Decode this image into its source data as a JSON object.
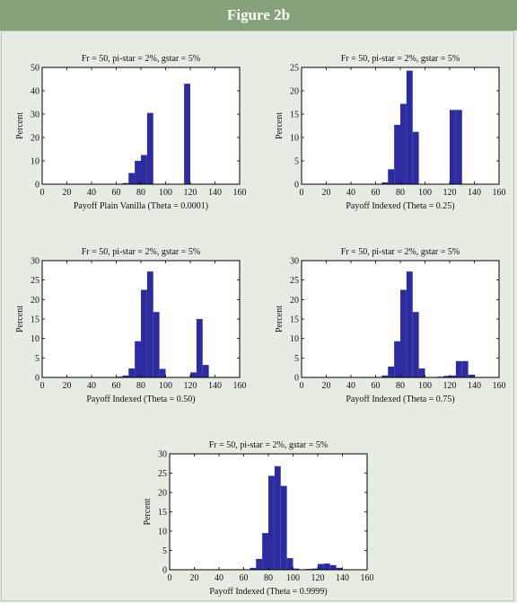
{
  "figure_title": "Figure 2b",
  "colors": {
    "banner": "#85a27a",
    "background": "#e7ece3",
    "bar": "#2c2ca0"
  },
  "chart_data": [
    {
      "type": "bar",
      "title": "Fr = 50, pi-star = 2%, gstar = 5%",
      "xlabel": "Payoff Plain Vanilla (Theta = 0.0001)",
      "ylabel": "Percent",
      "xlim": [
        0,
        160
      ],
      "ylim": [
        0,
        50
      ],
      "xticks": [
        0,
        20,
        40,
        60,
        80,
        100,
        120,
        140,
        160
      ],
      "yticks": [
        0,
        10,
        20,
        30,
        40,
        50
      ],
      "bin_width": 5,
      "bins": [
        [
          60,
          0.1
        ],
        [
          65,
          0.5
        ],
        [
          70,
          4.8
        ],
        [
          75,
          10
        ],
        [
          80,
          12.5
        ],
        [
          85,
          30.5
        ],
        [
          115,
          43
        ]
      ]
    },
    {
      "type": "bar",
      "title": "Fr = 50, pi-star = 2%, gstar = 5%",
      "xlabel": "Payoff Indexed (Theta = 0.25)",
      "ylabel": "Percent",
      "xlim": [
        0,
        160
      ],
      "ylim": [
        0,
        25
      ],
      "xticks": [
        0,
        20,
        40,
        60,
        80,
        100,
        120,
        140,
        160
      ],
      "yticks": [
        0,
        5,
        10,
        15,
        20,
        25
      ],
      "bin_width": 5,
      "bins": [
        [
          65,
          0.4
        ],
        [
          70,
          3.2
        ],
        [
          75,
          12.7
        ],
        [
          80,
          17.2
        ],
        [
          85,
          24.3
        ],
        [
          90,
          11.2
        ],
        [
          120,
          15.9
        ],
        [
          125,
          15.9
        ]
      ]
    },
    {
      "type": "bar",
      "title": "Fr = 50, pi-star = 2%, gstar = 5%",
      "xlabel": "Payoff Indexed (Theta = 0.50)",
      "ylabel": "Percent",
      "xlim": [
        0,
        160
      ],
      "ylim": [
        0,
        30
      ],
      "xticks": [
        0,
        20,
        40,
        60,
        80,
        100,
        120,
        140,
        160
      ],
      "yticks": [
        0,
        5,
        10,
        15,
        20,
        25,
        30
      ],
      "bin_width": 5,
      "bins": [
        [
          60,
          0.2
        ],
        [
          65,
          0.5
        ],
        [
          70,
          2.3
        ],
        [
          75,
          9.3
        ],
        [
          80,
          22.5
        ],
        [
          85,
          27.2
        ],
        [
          90,
          16.8
        ],
        [
          95,
          2.2
        ],
        [
          120,
          1.3
        ],
        [
          125,
          15
        ],
        [
          130,
          3.2
        ]
      ]
    },
    {
      "type": "bar",
      "title": "Fr = 50, pi-star = 2%, gstar = 5%",
      "xlabel": "Payoff Indexed (Theta = 0.75)",
      "ylabel": "Percent",
      "xlim": [
        0,
        160
      ],
      "ylim": [
        0,
        30
      ],
      "xticks": [
        0,
        20,
        40,
        60,
        80,
        100,
        120,
        140,
        160
      ],
      "yticks": [
        0,
        5,
        10,
        15,
        20,
        25,
        30
      ],
      "bin_width": 5,
      "bins": [
        [
          65,
          0.5
        ],
        [
          70,
          2.8
        ],
        [
          75,
          9.3
        ],
        [
          80,
          22.5
        ],
        [
          85,
          27.2
        ],
        [
          90,
          16.8
        ],
        [
          95,
          2.3
        ],
        [
          110,
          0.2
        ],
        [
          115,
          0.4
        ],
        [
          120,
          0.5
        ],
        [
          125,
          4.2
        ],
        [
          130,
          4.2
        ],
        [
          135,
          0.7
        ]
      ]
    },
    {
      "type": "bar",
      "title": "Fr = 50, pi-star = 2%, gstar = 5%",
      "xlabel": "Payoff Indexed (Theta = 0.9999)",
      "ylabel": "Percent",
      "xlim": [
        0,
        160
      ],
      "ylim": [
        0,
        30
      ],
      "xticks": [
        0,
        20,
        40,
        60,
        80,
        100,
        120,
        140,
        160
      ],
      "yticks": [
        0,
        5,
        10,
        15,
        20,
        25,
        30
      ],
      "bin_width": 5,
      "bins": [
        [
          65,
          0.5
        ],
        [
          70,
          2.8
        ],
        [
          75,
          9.5
        ],
        [
          80,
          24.3
        ],
        [
          85,
          26.8
        ],
        [
          90,
          21.7
        ],
        [
          95,
          3
        ],
        [
          100,
          0.3
        ],
        [
          110,
          0.2
        ],
        [
          115,
          0.3
        ],
        [
          120,
          1.5
        ],
        [
          125,
          1.6
        ],
        [
          130,
          1.2
        ],
        [
          135,
          0.5
        ]
      ]
    }
  ]
}
